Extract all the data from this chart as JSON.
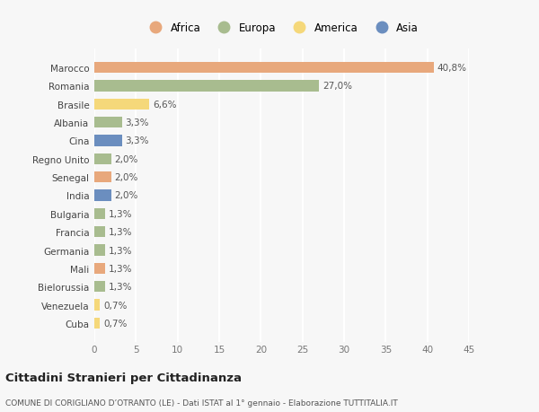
{
  "countries": [
    "Cuba",
    "Venezuela",
    "Bielorussia",
    "Mali",
    "Germania",
    "Francia",
    "Bulgaria",
    "India",
    "Senegal",
    "Regno Unito",
    "Cina",
    "Albania",
    "Brasile",
    "Romania",
    "Marocco"
  ],
  "values": [
    0.7,
    0.7,
    1.3,
    1.3,
    1.3,
    1.3,
    1.3,
    2.0,
    2.0,
    2.0,
    3.3,
    3.3,
    6.6,
    27.0,
    40.8
  ],
  "continents": [
    "America",
    "America",
    "Europa",
    "Africa",
    "Europa",
    "Europa",
    "Europa",
    "Asia",
    "Africa",
    "Europa",
    "Asia",
    "Europa",
    "America",
    "Europa",
    "Africa"
  ],
  "colors": {
    "Africa": "#E8A87C",
    "Europa": "#A8BC8F",
    "America": "#F5D87A",
    "Asia": "#6B8EBF"
  },
  "legend_order": [
    "Africa",
    "Europa",
    "America",
    "Asia"
  ],
  "xlim": [
    0,
    45
  ],
  "xticks": [
    0,
    5,
    10,
    15,
    20,
    25,
    30,
    35,
    40,
    45
  ],
  "title": "Cittadini Stranieri per Cittadinanza",
  "subtitle": "COMUNE DI CORIGLIANO D’OTRANTO (LE) - Dati ISTAT al 1° gennaio - Elaborazione TUTTITALIA.IT",
  "background_color": "#f7f7f7",
  "bar_height": 0.6,
  "label_fontsize": 7.5,
  "tick_fontsize": 7.5,
  "grid_color": "#ffffff"
}
